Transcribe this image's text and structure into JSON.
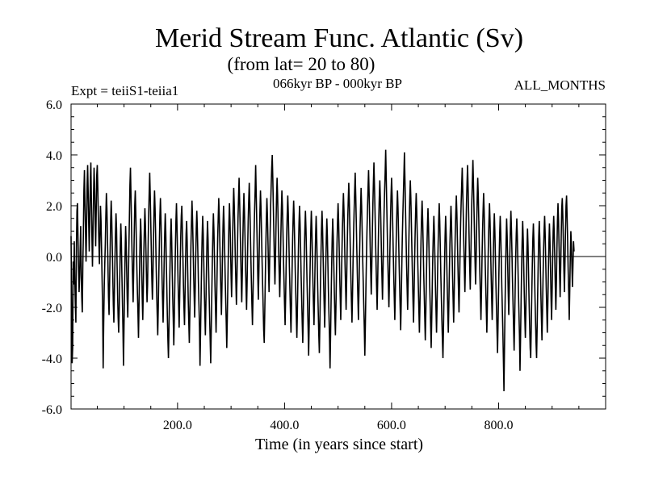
{
  "chart_data": {
    "type": "line",
    "title": "Merid Stream Func. Atlantic (Sv)",
    "subtitle": "(from lat= 20 to 80)",
    "experiment_label": "Expt = teiiS1-teiia1",
    "period_label": "066kyr BP - 000kyr BP",
    "months_label": "ALL_MONTHS",
    "xlabel": "Time (in years since start)",
    "ylabel": "",
    "xlim": [
      1,
      1000
    ],
    "ylim": [
      -6.0,
      6.0
    ],
    "x_ticks": [
      200,
      400,
      600,
      800
    ],
    "x_tick_labels": [
      "200.0",
      "400.0",
      "600.0",
      "800.0"
    ],
    "y_ticks": [
      6,
      4,
      2,
      0,
      -2,
      -4,
      -6
    ],
    "y_tick_labels": [
      "6.0",
      "4.0",
      "2.0",
      "0.0",
      "-2.0",
      "-4.0",
      "-6.0"
    ],
    "zero_line": true,
    "grid": false,
    "series_color": "#000000",
    "x_start": 1,
    "x_step": 1,
    "series": [
      {
        "values": [
          0.8,
          -1.8,
          -4.2,
          -3.6,
          -0.2,
          -1.1,
          0.6,
          -0.9,
          -1.9,
          -2.6,
          0.4,
          1.8,
          2.1,
          0.7,
          -0.5,
          -1.4,
          -0.8,
          0.3,
          1.2,
          -0.7,
          -1.6,
          -2.2,
          -0.3,
          0.9,
          2.6,
          3.4,
          2.1,
          1.0,
          -0.2,
          1.1,
          2.8,
          3.6,
          2.5,
          1.3,
          0.2,
          1.5,
          3.0,
          3.7,
          2.2,
          0.8,
          -0.4,
          0.9,
          2.4,
          3.5,
          2.8,
          1.6,
          0.4,
          1.8,
          3.2,
          3.6,
          2.7,
          1.5,
          0.6,
          -0.3,
          0.8,
          2.0,
          1.4,
          0.3,
          -0.9,
          -2.1,
          -4.4,
          -2.6,
          -1.2,
          -0.3,
          0.5,
          1.6,
          2.5,
          1.9,
          0.8,
          -0.4,
          -1.6,
          -2.3,
          -1.1,
          0.2,
          1.4,
          2.2,
          1.5,
          0.4,
          -0.8,
          -1.9,
          -2.6,
          -1.4,
          -0.2,
          0.9,
          1.7,
          1.1,
          -0.3,
          -1.5,
          -2.4,
          -3.0,
          -2.1,
          -0.9,
          0.4,
          1.3,
          0.6,
          -0.7,
          -1.8,
          -2.9,
          -4.3,
          -2.7,
          -1.2,
          0.1,
          1.2,
          0.5,
          -0.6,
          -1.7,
          -2.4,
          -1.1,
          0.3,
          1.5,
          2.8,
          3.5,
          2.4,
          1.2,
          0.1,
          -0.9,
          -1.8,
          -0.6,
          0.8,
          2.0,
          2.6,
          1.7,
          0.6,
          -0.5,
          -1.4,
          -2.2,
          -3.2,
          -1.9,
          -0.6,
          0.7,
          1.5,
          0.8,
          -0.4,
          -1.6,
          -2.5,
          -1.3,
          0.1,
          1.1,
          1.9,
          1.2,
          0.2,
          -0.9,
          -1.8,
          -1.1,
          0.4,
          1.6,
          2.5,
          3.3,
          2.4,
          1.3,
          0.2,
          -0.9,
          -1.7,
          -0.8,
          0.6,
          1.8,
          2.6,
          1.9,
          0.9,
          -0.3,
          -1.4,
          -2.3,
          -3.1,
          -2.0,
          -0.7,
          0.5,
          1.6,
          2.3,
          1.5,
          0.4,
          -0.8,
          -1.7,
          -2.6,
          -1.5,
          -0.2,
          0.9,
          1.7,
          1.0,
          -0.2,
          -1.3,
          -2.4,
          -3.3,
          -4.0,
          -2.8,
          -1.5,
          -0.3,
          0.8,
          1.5,
          0.7,
          -0.5,
          -1.6,
          -2.5,
          -3.5,
          -2.4,
          -1.0,
          0.3,
          1.4,
          2.1,
          1.2,
          0.1,
          -1.0,
          -1.9,
          -2.8,
          -1.6,
          -0.3,
          0.8,
          1.6,
          2.0,
          1.1,
          0.0,
          -1.1,
          -2.0,
          -2.7,
          -1.5,
          -0.2,
          0.9,
          1.4,
          0.6,
          -0.6,
          -1.7,
          -2.6,
          -3.4,
          -2.2,
          -0.9,
          0.4,
          1.3,
          2.2,
          1.5,
          0.5,
          -0.6,
          -1.5,
          -2.4,
          -1.3,
          0.0,
          1.1,
          1.8,
          1.1,
          0.1,
          -1.0,
          -1.9,
          -2.8,
          -4.3,
          -3.0,
          -1.6,
          -0.3,
          0.8,
          1.6,
          0.9,
          -0.2,
          -1.3,
          -2.2,
          -3.1,
          -1.9,
          -0.6,
          0.6,
          1.4,
          0.7,
          -0.4,
          -1.5,
          -2.4,
          -3.3,
          -4.2,
          -2.9,
          -1.5,
          -0.2,
          0.9,
          1.7,
          1.0,
          -0.1,
          -1.2,
          -2.1,
          -3.0,
          -1.8,
          -0.5,
          0.7,
          1.5,
          2.3,
          1.6,
          0.6,
          -0.5,
          -1.4,
          -2.3,
          -1.2,
          0.1,
          1.2,
          2.0,
          1.3,
          0.3,
          -0.8,
          -1.7,
          -2.6,
          -3.6,
          -2.4,
          -1.1,
          0.2,
          1.3,
          2.1,
          1.4,
          0.4,
          -0.7,
          -1.6,
          -0.5,
          0.8,
          1.9,
          2.7,
          2.0,
          1.0,
          -0.1,
          -1.0,
          -1.9,
          -0.9,
          0.4,
          1.5,
          2.3,
          3.1,
          2.2,
          1.2,
          0.1,
          -0.9,
          -1.8,
          -0.7,
          0.6,
          1.7,
          2.5,
          1.8,
          0.8,
          -0.3,
          -1.2,
          -2.1,
          -1.0,
          0.3,
          1.4,
          2.2,
          2.9,
          2.1,
          1.1,
          0.0,
          -1.0,
          -1.9,
          -2.7,
          -1.6,
          -0.3,
          0.9,
          1.8,
          2.6,
          3.6,
          2.5,
          1.4,
          0.3,
          -0.8,
          -1.7,
          -0.6,
          0.7,
          1.8,
          2.6,
          1.9,
          0.9,
          -0.2,
          -1.1,
          -2.0,
          -2.9,
          -3.4,
          -2.2,
          -0.9,
          0.4,
          1.5,
          2.3,
          1.6,
          0.6,
          -0.5,
          -1.4,
          -0.3,
          0.9,
          2.0,
          2.8,
          3.5,
          4.0,
          3.1,
          2.0,
          0.9,
          -0.2,
          -1.1,
          -0.1,
          1.2,
          2.3,
          3.1,
          2.4,
          1.4,
          0.3,
          -0.7,
          -1.6,
          -0.6,
          0.7,
          1.8,
          2.6,
          2.0,
          1.0,
          -0.1,
          -1.0,
          -1.9,
          -2.7,
          -1.6,
          -0.3,
          0.8,
          1.7,
          2.4,
          1.7,
          0.7,
          -0.4,
          -1.3,
          -2.2,
          -3.0,
          -1.9,
          -0.6,
          0.6,
          1.5,
          2.2,
          1.5,
          0.5,
          -0.6,
          -1.5,
          -2.4,
          -3.2,
          -2.1,
          -0.8,
          0.4,
          1.3,
          2.0,
          1.3,
          0.3,
          -0.8,
          -1.7,
          -2.6,
          -3.4,
          -2.3,
          -1.0,
          0.2,
          1.1,
          1.8,
          1.1,
          0.1,
          -1.0,
          -1.9,
          -2.8,
          -3.9,
          -2.7,
          -1.3,
          -0.1,
          1.0,
          1.8,
          1.1,
          0.1,
          -1.0,
          -1.9,
          -2.7,
          -1.6,
          -0.3,
          0.8,
          1.6,
          0.9,
          -0.2,
          -1.3,
          -2.2,
          -3.1,
          -3.8,
          -2.6,
          -1.2,
          0.0,
          1.1,
          1.8,
          1.1,
          0.1,
          -1.0,
          -1.9,
          -2.8,
          -1.7,
          -0.4,
          0.7,
          1.5,
          0.8,
          -0.3,
          -1.4,
          -2.3,
          -3.2,
          -4.4,
          -3.1,
          -1.7,
          -0.4,
          0.7,
          1.5,
          0.8,
          -0.3,
          -1.4,
          -2.3,
          -3.1,
          -2.0,
          -0.7,
          0.5,
          1.4,
          2.1,
          1.4,
          0.4,
          -0.7,
          -1.6,
          -2.5,
          -1.4,
          -0.1,
          1.0,
          1.8,
          2.5,
          1.8,
          0.8,
          -0.3,
          -1.2,
          -2.1,
          -1.0,
          0.3,
          1.4,
          2.2,
          2.9,
          2.2,
          1.2,
          0.1,
          -0.9,
          -1.8,
          -2.6,
          -1.5,
          -0.2,
          0.9,
          1.8,
          2.6,
          3.3,
          2.4,
          1.4,
          0.3,
          -0.7,
          -1.6,
          -2.5,
          -1.4,
          -0.1,
          1.0,
          1.9,
          2.7,
          2.0,
          1.0,
          -0.1,
          -1.0,
          -1.9,
          -2.8,
          -3.9,
          -2.7,
          -1.3,
          -0.1,
          1.0,
          1.9,
          2.7,
          3.4,
          2.5,
          1.5,
          0.4,
          -0.6,
          -1.5,
          -0.4,
          0.9,
          2.0,
          2.9,
          3.7,
          2.8,
          1.8,
          0.7,
          -0.3,
          -1.2,
          -2.1,
          -1.0,
          0.3,
          1.4,
          2.3,
          3.0,
          2.3,
          1.3,
          0.2,
          -0.8,
          -1.7,
          -0.6,
          0.7,
          1.8,
          2.6,
          3.3,
          4.2,
          3.1,
          2.0,
          0.9,
          -0.2,
          -1.1,
          -2.0,
          -0.9,
          0.4,
          1.5,
          2.4,
          3.1,
          2.4,
          1.4,
          0.3,
          -0.7,
          -1.6,
          -2.5,
          -1.4,
          -0.1,
          1.0,
          1.9,
          2.6,
          1.9,
          0.9,
          -0.2,
          -1.1,
          -2.0,
          -2.9,
          -1.8,
          -0.5,
          0.7,
          1.6,
          2.4,
          3.2,
          4.1,
          3.0,
          1.9,
          0.8,
          -0.3,
          -1.2,
          -2.1,
          -1.0,
          0.3,
          1.4,
          2.3,
          3.0,
          2.3,
          1.3,
          0.2,
          -0.8,
          -1.7,
          -2.6,
          -1.5,
          -0.2,
          0.9,
          1.8,
          2.5,
          1.8,
          0.8,
          -0.3,
          -1.2,
          -2.1,
          -3.0,
          -1.9,
          -0.6,
          0.6,
          1.5,
          2.2,
          1.5,
          0.5,
          -0.6,
          -1.5,
          -2.4,
          -3.3,
          -2.2,
          -0.9,
          0.3,
          1.2,
          1.9,
          1.2,
          0.2,
          -0.9,
          -1.8,
          -2.7,
          -3.6,
          -2.5,
          -1.2,
          0.0,
          0.9,
          1.6,
          0.9,
          -0.1,
          -1.2,
          -2.1,
          -3.0,
          -1.9,
          -0.6,
          0.5,
          1.4,
          2.1,
          1.4,
          0.4,
          -0.7,
          -1.6,
          -2.5,
          -3.3,
          -4.0,
          -2.8,
          -1.5,
          -0.3,
          0.8,
          1.6,
          0.9,
          -0.1,
          -1.2,
          -2.1,
          -3.0,
          -1.9,
          -0.6,
          0.5,
          1.3,
          2.0,
          1.3,
          0.3,
          -0.8,
          -1.7,
          -2.6,
          -1.5,
          -0.2,
          0.9,
          1.7,
          2.4,
          1.7,
          0.7,
          -0.4,
          -1.3,
          -2.2,
          -1.1,
          0.2,
          1.3,
          2.1,
          2.8,
          3.5,
          2.6,
          1.6,
          0.5,
          -0.5,
          -1.4,
          -0.3,
          1.0,
          2.1,
          2.9,
          3.6,
          2.7,
          1.7,
          0.6,
          -0.4,
          -1.3,
          -0.2,
          1.1,
          2.2,
          3.0,
          3.8,
          2.9,
          1.9,
          0.8,
          -0.2,
          -1.1,
          -0.1,
          1.2,
          2.3,
          3.1,
          2.4,
          1.4,
          0.3,
          -0.7,
          -1.6,
          -2.5,
          -1.4,
          -0.1,
          1.0,
          1.8,
          2.5,
          1.8,
          0.8,
          -0.3,
          -1.2,
          -2.1,
          -3.0,
          -1.9,
          -0.6,
          0.6,
          1.4,
          2.1,
          1.4,
          0.4,
          -0.7,
          -1.6,
          -2.5,
          -1.4,
          -0.1,
          1.0,
          1.7,
          1.0,
          0.0,
          -1.1,
          -2.0,
          -2.9,
          -3.8,
          -2.6,
          -1.3,
          -0.1,
          0.9,
          1.6,
          0.9,
          -0.1,
          -1.2,
          -2.1,
          -3.0,
          -4.1,
          -5.3,
          -3.6,
          -2.0,
          -0.6,
          0.6,
          1.5,
          0.8,
          -0.3,
          -1.4,
          -2.3,
          -1.2,
          0.1,
          1.1,
          1.8,
          1.1,
          0.1,
          -1.0,
          -1.9,
          -2.8,
          -3.7,
          -2.5,
          -1.2,
          0.0,
          0.9,
          1.5,
          0.8,
          -0.2,
          -1.3,
          -2.2,
          -3.1,
          -4.5,
          -3.2,
          -1.8,
          -0.5,
          0.6,
          1.4,
          0.7,
          -0.4,
          -1.5,
          -2.4,
          -3.2,
          -2.1,
          -0.8,
          0.3,
          1.1,
          0.4,
          -0.7,
          -1.8,
          -2.7,
          -3.6,
          -4.0,
          -2.8,
          -1.5,
          -0.3,
          0.7,
          1.3,
          0.6,
          -0.5,
          -1.6,
          -2.5,
          -3.4,
          -4.0,
          -2.8,
          -1.5,
          -0.3,
          0.8,
          1.4,
          0.7,
          -0.4,
          -1.5,
          -2.4,
          -3.3,
          -2.2,
          -0.9,
          0.2,
          1.0,
          1.6,
          0.9,
          -0.1,
          -1.2,
          -2.1,
          -3.0,
          -1.9,
          -0.6,
          0.5,
          1.3,
          0.6,
          -0.5,
          -1.6,
          -2.5,
          -1.4,
          -0.1,
          1.0,
          1.6,
          0.9,
          -0.1,
          -1.2,
          -2.1,
          -1.0,
          0.3,
          1.4,
          2.1,
          1.4,
          0.4,
          -0.7,
          -1.6,
          -0.5,
          0.8,
          1.9,
          2.3,
          1.6,
          0.6,
          -0.5,
          -1.4,
          -0.3,
          1.0,
          2.0,
          2.4,
          1.6,
          0.6,
          -0.5,
          -1.4,
          -2.5,
          -1.3,
          0.0,
          1.0,
          0.5,
          -0.4,
          -1.2,
          -0.3,
          0.6,
          0.2
        ]
      }
    ]
  }
}
